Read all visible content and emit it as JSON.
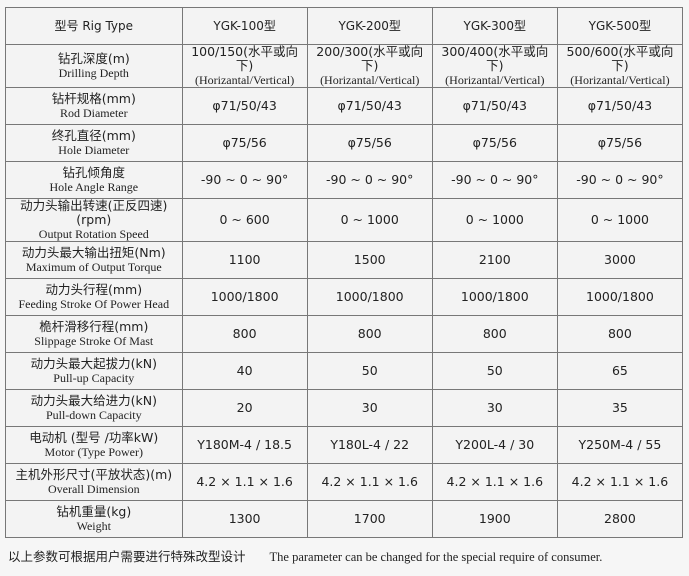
{
  "header": {
    "label": "型号 Rig Type",
    "models": [
      "YGK-100型",
      "YGK-200型",
      "YGK-300型",
      "YGK-500型"
    ]
  },
  "rows": [
    {
      "cn": "钻孔深度(m)",
      "en": "Drilling Depth",
      "values": [
        "100/150(水平或向下)",
        "200/300(水平或向下)",
        "300/400(水平或向下)",
        "500/600(水平或向下)"
      ],
      "sub": "(Horizantal/Vertical)"
    },
    {
      "cn": "钻杆规格(mm)",
      "en": "Rod Diameter",
      "values": [
        "φ71/50/43",
        "φ71/50/43",
        "φ71/50/43",
        "φ71/50/43"
      ]
    },
    {
      "cn": "终孔直径(mm)",
      "en": "Hole Diameter",
      "values": [
        "φ75/56",
        "φ75/56",
        "φ75/56",
        "φ75/56"
      ]
    },
    {
      "cn": "钻孔倾角度",
      "en": "Hole Angle Range",
      "values": [
        "-90 ~ 0 ~ 90°",
        "-90 ~ 0 ~ 90°",
        "-90 ~ 0 ~ 90°",
        "-90 ~ 0 ~ 90°"
      ]
    },
    {
      "cn": "动力头输出转速(正反四速)(rpm)",
      "en": "Output Rotation Speed",
      "values": [
        "0 ~ 600",
        "0 ~ 1000",
        "0 ~ 1000",
        "0 ~ 1000"
      ]
    },
    {
      "cn": "动力头最大输出扭矩(Nm)",
      "en": "Maximum of Output Torque",
      "values": [
        "1100",
        "1500",
        "2100",
        "3000"
      ]
    },
    {
      "cn": "动力头行程(mm)",
      "en": "Feeding Stroke Of Power Head",
      "values": [
        "1000/1800",
        "1000/1800",
        "1000/1800",
        "1000/1800"
      ]
    },
    {
      "cn": "桅杆滑移行程(mm)",
      "en": "Slippage Stroke Of Mast",
      "values": [
        "800",
        "800",
        "800",
        "800"
      ]
    },
    {
      "cn": "动力头最大起拔力(kN)",
      "en": "Pull-up Capacity",
      "values": [
        "40",
        "50",
        "50",
        "65"
      ]
    },
    {
      "cn": "动力头最大给进力(kN)",
      "en": "Pull-down Capacity",
      "values": [
        "20",
        "30",
        "30",
        "35"
      ]
    },
    {
      "cn": "电动机 (型号 /功率kW)",
      "en": "Motor (Type  Power)",
      "values": [
        "Y180M-4 / 18.5",
        "Y180L-4 / 22",
        "Y200L-4 / 30",
        "Y250M-4 / 55"
      ]
    },
    {
      "cn": "主机外形尺寸(平放状态)(m)",
      "en": "Overall Dimension",
      "values": [
        "4.2 × 1.1 × 1.6",
        "4.2 × 1.1 × 1.6",
        "4.2 × 1.1 × 1.6",
        "4.2 × 1.1 × 1.6"
      ]
    },
    {
      "cn": "钻机重量(kg)",
      "en": "Weight",
      "values": [
        "1300",
        "1700",
        "1900",
        "2800"
      ]
    }
  ],
  "note": {
    "cn": "以上参数可根据用户需要进行特殊改型设计",
    "en": "The parameter can be changed for the special require of consumer."
  }
}
